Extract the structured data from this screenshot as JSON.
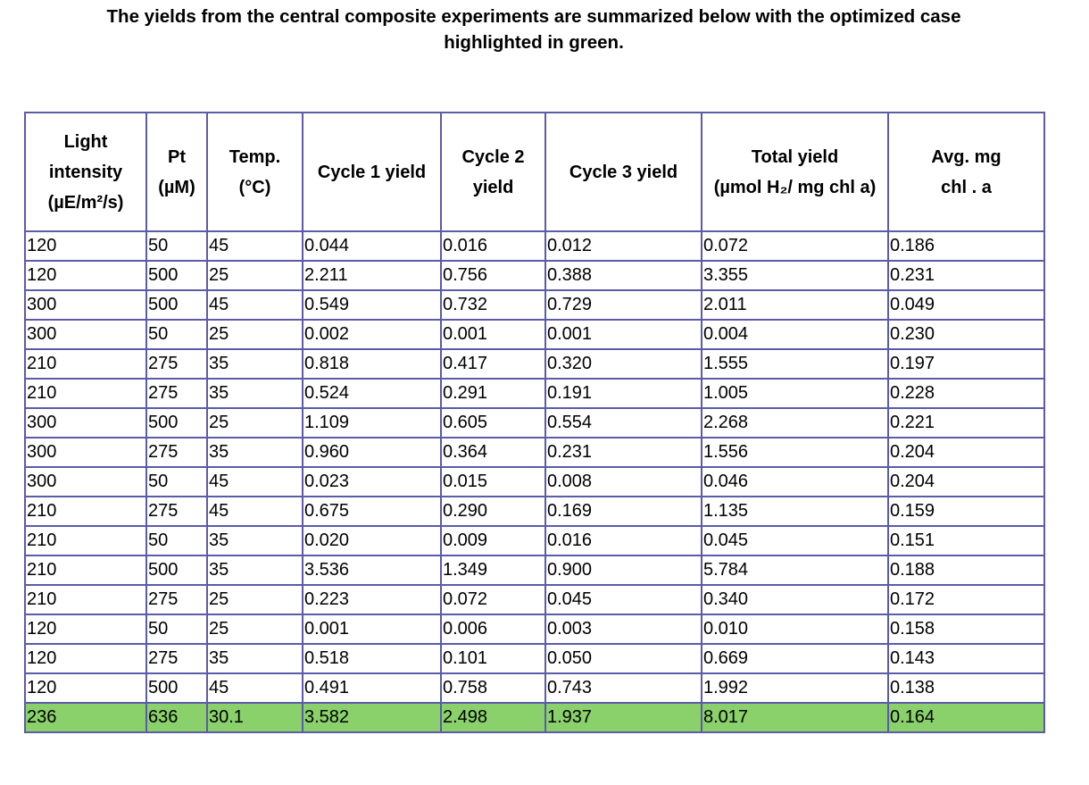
{
  "caption": {
    "line1": "The yields from the central composite experiments are summarized below with the optimized case",
    "line2": "highlighted in green."
  },
  "highlight_color": "#8ad06b",
  "border_color": "#5b5ba8",
  "table": {
    "headers": [
      [
        "Light",
        "intensity",
        "(µE/m²/s)"
      ],
      [
        "Pt",
        "(µM)"
      ],
      [
        "Temp.",
        "(°C)"
      ],
      [
        "Cycle 1 yield"
      ],
      [
        "Cycle 2",
        "yield"
      ],
      [
        "Cycle 3 yield"
      ],
      [
        "Total yield",
        "(µmol H₂/ mg chl a)"
      ],
      [
        "Avg. mg",
        "chl . a"
      ]
    ],
    "rows": [
      [
        "120",
        "50",
        "45",
        "0.044",
        "0.016",
        "0.012",
        "0.072",
        "0.186"
      ],
      [
        "120",
        "500",
        "25",
        "2.211",
        "0.756",
        "0.388",
        "3.355",
        "0.231"
      ],
      [
        "300",
        "500",
        "45",
        "0.549",
        "0.732",
        "0.729",
        "2.011",
        "0.049"
      ],
      [
        "300",
        "50",
        "25",
        "0.002",
        "0.001",
        "0.001",
        "0.004",
        "0.230"
      ],
      [
        "210",
        "275",
        "35",
        "0.818",
        "0.417",
        "0.320",
        "1.555",
        "0.197"
      ],
      [
        "210",
        "275",
        "35",
        "0.524",
        "0.291",
        "0.191",
        "1.005",
        "0.228"
      ],
      [
        "300",
        "500",
        "25",
        "1.109",
        "0.605",
        "0.554",
        "2.268",
        "0.221"
      ],
      [
        "300",
        "275",
        "35",
        "0.960",
        "0.364",
        "0.231",
        "1.556",
        "0.204"
      ],
      [
        "300",
        "50",
        "45",
        "0.023",
        "0.015",
        "0.008",
        "0.046",
        "0.204"
      ],
      [
        "210",
        "275",
        "45",
        "0.675",
        "0.290",
        "0.169",
        "1.135",
        "0.159"
      ],
      [
        "210",
        "50",
        "35",
        "0.020",
        "0.009",
        "0.016",
        "0.045",
        "0.151"
      ],
      [
        "210",
        "500",
        "35",
        "3.536",
        "1.349",
        "0.900",
        "5.784",
        "0.188"
      ],
      [
        "210",
        "275",
        "25",
        "0.223",
        "0.072",
        "0.045",
        "0.340",
        "0.172"
      ],
      [
        "120",
        "50",
        "25",
        "0.001",
        "0.006",
        "0.003",
        "0.010",
        "0.158"
      ],
      [
        "120",
        "275",
        "35",
        "0.518",
        "0.101",
        "0.050",
        "0.669",
        "0.143"
      ],
      [
        "120",
        "500",
        "45",
        "0.491",
        "0.758",
        "0.743",
        "1.992",
        "0.138"
      ]
    ],
    "optimized_row": [
      "236",
      "636",
      "30.1",
      "3.582",
      "2.498",
      "1.937",
      "8.017",
      "0.164"
    ]
  }
}
